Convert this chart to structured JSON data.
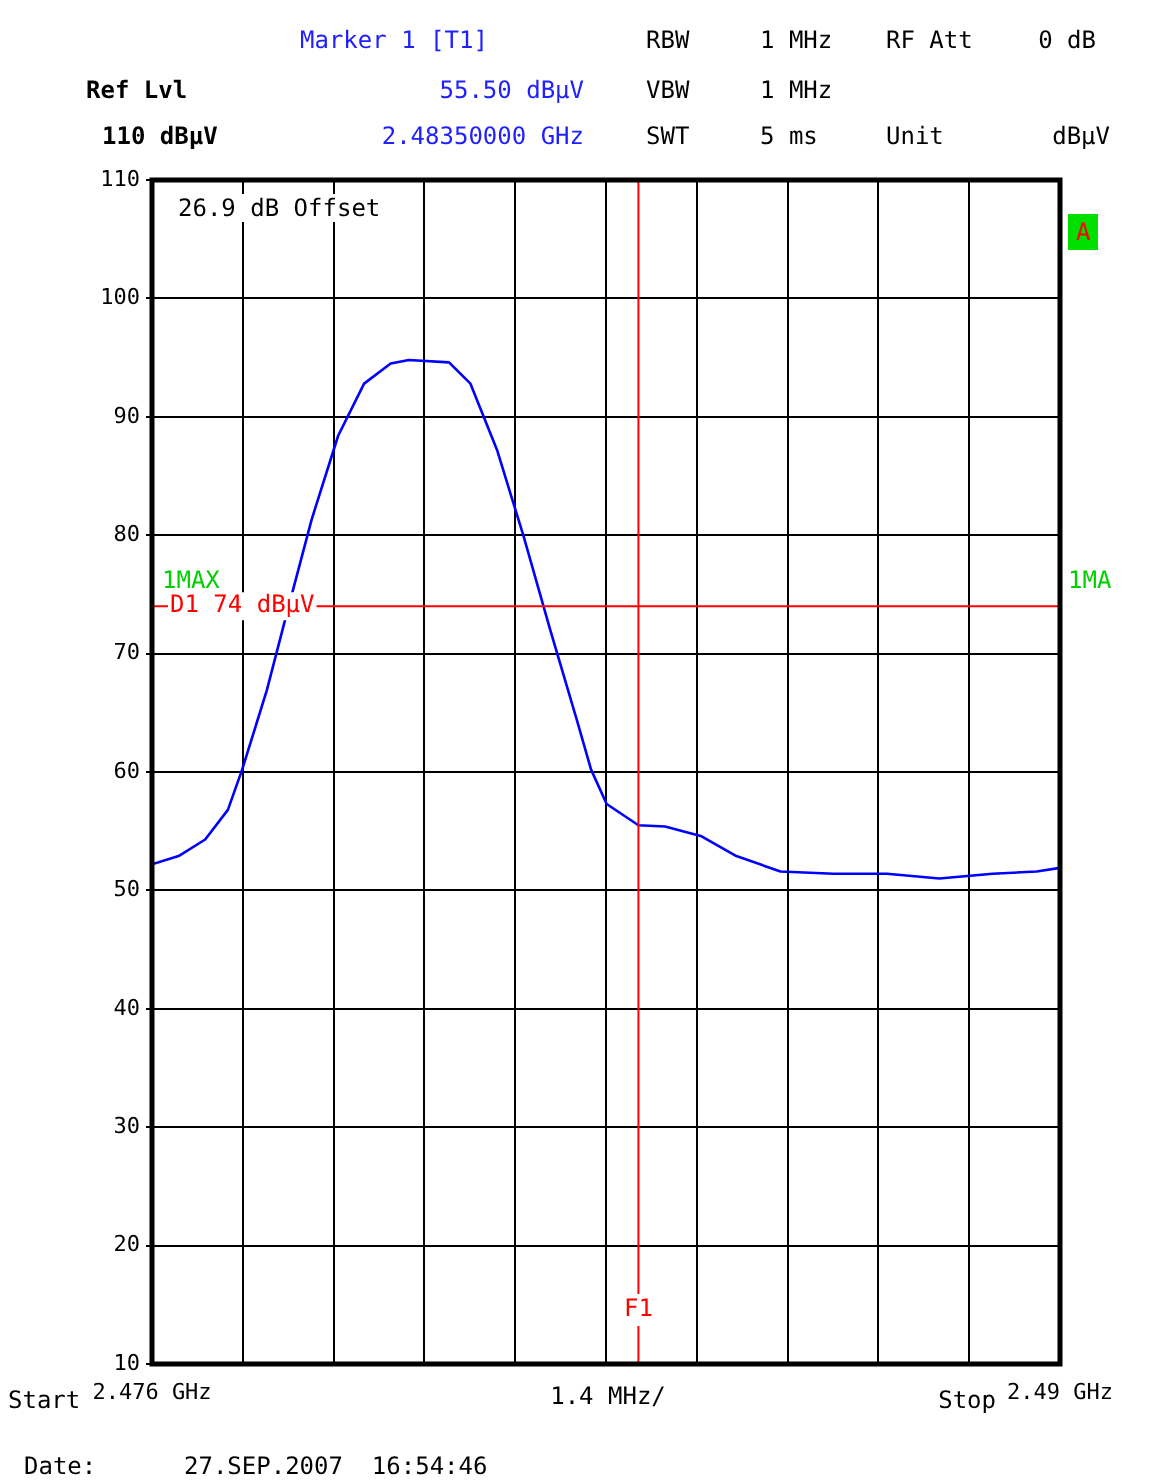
{
  "chart_data": {
    "type": "line",
    "xlabel": "1.4 MHz/",
    "x": [
      2.476,
      2.47641,
      2.47682,
      2.47717,
      2.47739,
      2.47777,
      2.47805,
      2.47846,
      2.47887,
      2.47927,
      2.47968,
      2.47996,
      2.48058,
      2.48091,
      2.48132,
      2.48173,
      2.48214,
      2.48255,
      2.48277,
      2.48301,
      2.4835,
      2.48391,
      2.48446,
      2.48501,
      2.48569,
      2.48651,
      2.48733,
      2.48814,
      2.48896,
      2.48964,
      2.49
    ],
    "series": [
      {
        "color": "#0000ff",
        "values": [
          52.2,
          52.9,
          54.3,
          56.8,
          60.2,
          66.9,
          72.8,
          81.3,
          88.4,
          92.8,
          94.5,
          94.8,
          94.6,
          92.8,
          87.2,
          79.9,
          72.0,
          64.4,
          60.2,
          57.3,
          55.5,
          55.4,
          54.6,
          52.9,
          51.6,
          51.4,
          51.4,
          51.0,
          51.4,
          51.6,
          51.9
        ]
      }
    ],
    "xlim": [
      2.476,
      2.49
    ],
    "xticks": [
      {
        "value": 2.476,
        "label": "2.476 GHz"
      },
      {
        "value": 2.4774,
        "label": null
      },
      {
        "value": 2.4788,
        "label": null
      },
      {
        "value": 2.4802,
        "label": null
      },
      {
        "value": 2.4816,
        "label": null
      },
      {
        "value": 2.483,
        "label": null
      },
      {
        "value": 2.4844,
        "label": null
      },
      {
        "value": 2.4858,
        "label": null
      },
      {
        "value": 2.4872,
        "label": null
      },
      {
        "value": 2.4886,
        "label": null
      },
      {
        "value": 2.49,
        "label": "2.49 GHz"
      }
    ],
    "ylim": [
      10,
      110
    ],
    "yticks": [
      10,
      20,
      30,
      40,
      50,
      60,
      70,
      80,
      90,
      100,
      110
    ],
    "grid": true,
    "marker": "none",
    "line_style": "solid",
    "ref_lines": [
      {
        "axis": "y",
        "value": 74,
        "label": "D1 74 dBµV",
        "color": "#ff0000"
      },
      {
        "axis": "x",
        "value": 2.4835,
        "label": "F1",
        "color": "#ff0000"
      }
    ],
    "annotations": [
      "Marker 1 [T1]",
      "Ref Lvl",
      "55.50 dBµV",
      "2.48350000 GHz",
      "110 dBµV",
      "RBW",
      "1 MHz",
      "RF Att",
      "0 dB",
      "VBW",
      "1 MHz",
      "SWT",
      "5 ms",
      "Unit",
      "dBµV",
      "26.9 dB Offset",
      "1MAX",
      "1MA",
      "A",
      "Date:",
      "27.SEP.2007  16:54:46",
      "Start",
      "Stop"
    ]
  }
}
